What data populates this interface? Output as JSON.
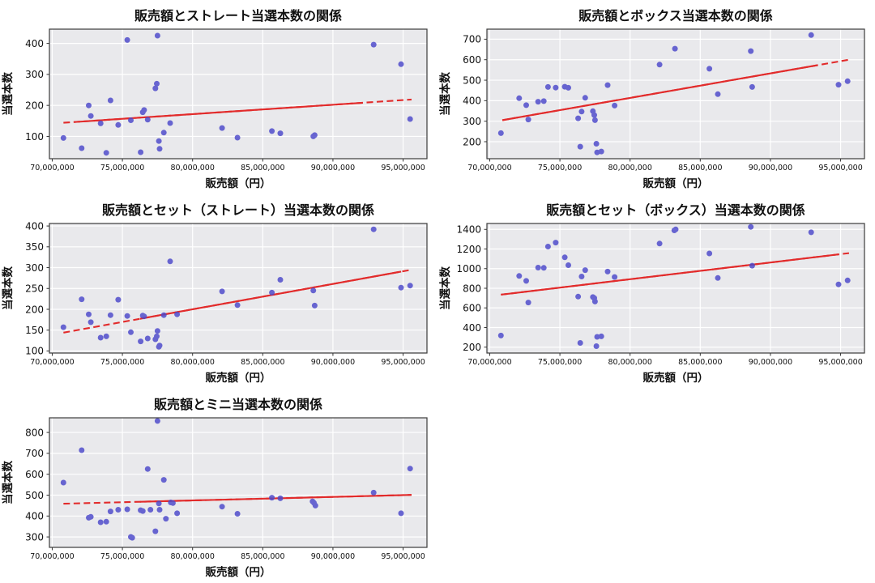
{
  "figure": {
    "background": "#ffffff",
    "rows": 3,
    "cols": 2
  },
  "style": {
    "plot_bg": "#e9e9ec",
    "grid_color": "#ffffff",
    "spine_color": "#3b3b3b",
    "tick_color": "#333333",
    "text_color": "#111111",
    "marker_color": "#4b48cb",
    "marker_opacity": 0.82,
    "trend_color": "#e22b2b"
  },
  "chart_data": [
    {
      "id": "straight",
      "type": "scatter",
      "title": "販売額とストレート当選本数の関係",
      "xlabel": "販売額（円）",
      "ylabel": "当選本数",
      "grid": true,
      "xlim": [
        69800000,
        96700000
      ],
      "ylim": [
        28,
        446
      ],
      "xticks": [
        [
          70000000,
          "70,000,000"
        ],
        [
          75000000,
          "75,000,000"
        ],
        [
          80000000,
          "80,000,000"
        ],
        [
          85000000,
          "85,000,000"
        ],
        [
          90000000,
          "90,000,000"
        ],
        [
          95000000,
          "95,000,000"
        ]
      ],
      "yticks": [
        [
          100,
          "100"
        ],
        [
          200,
          "200"
        ],
        [
          300,
          "300"
        ],
        [
          400,
          "400"
        ]
      ],
      "points": [
        [
          70800000,
          95
        ],
        [
          72100000,
          62
        ],
        [
          72600000,
          200
        ],
        [
          72750000,
          166
        ],
        [
          73450000,
          142
        ],
        [
          73850000,
          47
        ],
        [
          74150000,
          216
        ],
        [
          74700000,
          137
        ],
        [
          75350000,
          411
        ],
        [
          75600000,
          152
        ],
        [
          76300000,
          49
        ],
        [
          76450000,
          178
        ],
        [
          76550000,
          185
        ],
        [
          76800000,
          154
        ],
        [
          77350000,
          255
        ],
        [
          77450000,
          270
        ],
        [
          77500000,
          425
        ],
        [
          77600000,
          85
        ],
        [
          77650000,
          60
        ],
        [
          77950000,
          112
        ],
        [
          78400000,
          143
        ],
        [
          82100000,
          127
        ],
        [
          83200000,
          96
        ],
        [
          85650000,
          117
        ],
        [
          86250000,
          110
        ],
        [
          88600000,
          100
        ],
        [
          88700000,
          104
        ],
        [
          92900000,
          396
        ],
        [
          94850000,
          333
        ],
        [
          95500000,
          156
        ]
      ],
      "trend": {
        "x1": 70800000,
        "y1": 144,
        "x2": 95600000,
        "y2": 219,
        "solid": [
          0.03,
          0.86
        ]
      }
    },
    {
      "id": "box",
      "type": "scatter",
      "title": "販売額とボックス当選本数の関係",
      "xlabel": "販売額（円）",
      "ylabel": "当選本数",
      "grid": true,
      "xlim": [
        69800000,
        96700000
      ],
      "ylim": [
        117,
        749
      ],
      "xticks": [
        [
          70000000,
          "70,000,000"
        ],
        [
          75000000,
          "75,000,000"
        ],
        [
          80000000,
          "80,000,000"
        ],
        [
          85000000,
          "85,000,000"
        ],
        [
          90000000,
          "90,000,000"
        ],
        [
          95000000,
          "95,000,000"
        ]
      ],
      "yticks": [
        [
          200,
          "200"
        ],
        [
          300,
          "300"
        ],
        [
          400,
          "400"
        ],
        [
          500,
          "500"
        ],
        [
          600,
          "600"
        ],
        [
          700,
          "700"
        ]
      ],
      "points": [
        [
          70800000,
          242
        ],
        [
          72100000,
          412
        ],
        [
          72600000,
          378
        ],
        [
          72750000,
          308
        ],
        [
          73450000,
          395
        ],
        [
          73850000,
          398
        ],
        [
          74150000,
          467
        ],
        [
          74700000,
          464
        ],
        [
          75350000,
          468
        ],
        [
          75600000,
          463
        ],
        [
          76300000,
          314
        ],
        [
          76450000,
          176
        ],
        [
          76550000,
          347
        ],
        [
          76800000,
          414
        ],
        [
          77350000,
          349
        ],
        [
          77450000,
          330
        ],
        [
          77500000,
          305
        ],
        [
          77600000,
          190
        ],
        [
          77650000,
          148
        ],
        [
          77950000,
          152
        ],
        [
          78400000,
          476
        ],
        [
          78900000,
          376
        ],
        [
          82100000,
          576
        ],
        [
          83200000,
          654
        ],
        [
          85650000,
          556
        ],
        [
          86250000,
          432
        ],
        [
          88600000,
          642
        ],
        [
          88700000,
          467
        ],
        [
          92900000,
          720
        ],
        [
          94850000,
          478
        ],
        [
          95500000,
          495
        ]
      ],
      "trend": {
        "x1": 70900000,
        "y1": 305,
        "x2": 95600000,
        "y2": 600,
        "solid": [
          0.0,
          0.91
        ]
      }
    },
    {
      "id": "set-straight",
      "type": "scatter",
      "title": "販売額とセット（ストレート）当選本数の関係",
      "xlabel": "販売額（円）",
      "ylabel": "当選本数",
      "grid": true,
      "xlim": [
        69800000,
        96700000
      ],
      "ylim": [
        95,
        406
      ],
      "xticks": [
        [
          70000000,
          "70,000,000"
        ],
        [
          75000000,
          "75,000,000"
        ],
        [
          80000000,
          "80,000,000"
        ],
        [
          85000000,
          "85,000,000"
        ],
        [
          90000000,
          "90,000,000"
        ],
        [
          95000000,
          "95,000,000"
        ]
      ],
      "yticks": [
        [
          100,
          "100"
        ],
        [
          150,
          "150"
        ],
        [
          200,
          "200"
        ],
        [
          250,
          "250"
        ],
        [
          300,
          "300"
        ],
        [
          350,
          "350"
        ],
        [
          400,
          "400"
        ]
      ],
      "points": [
        [
          70800000,
          157
        ],
        [
          72100000,
          224
        ],
        [
          72600000,
          188
        ],
        [
          72750000,
          169
        ],
        [
          73450000,
          132
        ],
        [
          73850000,
          135
        ],
        [
          74150000,
          186
        ],
        [
          74700000,
          223
        ],
        [
          75350000,
          184
        ],
        [
          75600000,
          145
        ],
        [
          76300000,
          123
        ],
        [
          76450000,
          185
        ],
        [
          76550000,
          183
        ],
        [
          76800000,
          130
        ],
        [
          77350000,
          128
        ],
        [
          77450000,
          135
        ],
        [
          77500000,
          148
        ],
        [
          77600000,
          110
        ],
        [
          77650000,
          113
        ],
        [
          77950000,
          186
        ],
        [
          78400000,
          315
        ],
        [
          78900000,
          188
        ],
        [
          82100000,
          243
        ],
        [
          83200000,
          210
        ],
        [
          85650000,
          240
        ],
        [
          86250000,
          271
        ],
        [
          88600000,
          245
        ],
        [
          88700000,
          209
        ],
        [
          92900000,
          392
        ],
        [
          94850000,
          252
        ],
        [
          95500000,
          257
        ]
      ],
      "trend": {
        "x1": 70800000,
        "y1": 144,
        "x2": 95600000,
        "y2": 295,
        "solid": [
          0.22,
          0.97
        ]
      }
    },
    {
      "id": "set-box",
      "type": "scatter",
      "title": "販売額とセット（ボックス）当選本数の関係",
      "xlabel": "販売額（円）",
      "ylabel": "当選本数",
      "grid": true,
      "xlim": [
        69800000,
        96700000
      ],
      "ylim": [
        140,
        1460
      ],
      "xticks": [
        [
          70000000,
          "70,000,000"
        ],
        [
          75000000,
          "75,000,000"
        ],
        [
          80000000,
          "80,000,000"
        ],
        [
          85000000,
          "85,000,000"
        ],
        [
          90000000,
          "90,000,000"
        ],
        [
          95000000,
          "95,000,000"
        ]
      ],
      "yticks": [
        [
          200,
          "200"
        ],
        [
          400,
          "400"
        ],
        [
          600,
          "600"
        ],
        [
          800,
          "800"
        ],
        [
          1000,
          "1000"
        ],
        [
          1200,
          "1200"
        ],
        [
          1400,
          "1400"
        ]
      ],
      "points": [
        [
          70800000,
          318
        ],
        [
          72100000,
          925
        ],
        [
          72600000,
          875
        ],
        [
          72750000,
          655
        ],
        [
          73450000,
          1010
        ],
        [
          73850000,
          1008
        ],
        [
          74150000,
          1225
        ],
        [
          74700000,
          1265
        ],
        [
          75350000,
          1115
        ],
        [
          75600000,
          1035
        ],
        [
          76300000,
          715
        ],
        [
          76450000,
          243
        ],
        [
          76550000,
          920
        ],
        [
          76800000,
          985
        ],
        [
          77350000,
          710
        ],
        [
          77450000,
          700
        ],
        [
          77500000,
          665
        ],
        [
          77600000,
          210
        ],
        [
          77650000,
          305
        ],
        [
          77950000,
          310
        ],
        [
          78400000,
          970
        ],
        [
          78900000,
          915
        ],
        [
          82100000,
          1255
        ],
        [
          83150000,
          1390
        ],
        [
          83250000,
          1400
        ],
        [
          85650000,
          1155
        ],
        [
          86250000,
          905
        ],
        [
          88600000,
          1425
        ],
        [
          88700000,
          1030
        ],
        [
          92900000,
          1370
        ],
        [
          94850000,
          840
        ],
        [
          95500000,
          880
        ]
      ],
      "trend": {
        "x1": 70800000,
        "y1": 735,
        "x2": 95600000,
        "y2": 1158,
        "solid": [
          0.0,
          0.97
        ]
      }
    },
    {
      "id": "mini",
      "type": "scatter",
      "title": "販売額とミニ当選本数の関係",
      "xlabel": "販売額（円）",
      "ylabel": "当選本数",
      "grid": true,
      "xlim": [
        69800000,
        96700000
      ],
      "ylim": [
        250,
        870
      ],
      "xticks": [
        [
          70000000,
          "70,000,000"
        ],
        [
          75000000,
          "75,000,000"
        ],
        [
          80000000,
          "80,000,000"
        ],
        [
          85000000,
          "85,000,000"
        ],
        [
          90000000,
          "90,000,000"
        ],
        [
          95000000,
          "95,000,000"
        ]
      ],
      "yticks": [
        [
          300,
          "300"
        ],
        [
          400,
          "400"
        ],
        [
          500,
          "500"
        ],
        [
          600,
          "600"
        ],
        [
          700,
          "700"
        ],
        [
          800,
          "800"
        ]
      ],
      "points": [
        [
          70800000,
          560
        ],
        [
          72100000,
          715
        ],
        [
          72600000,
          392
        ],
        [
          72750000,
          396
        ],
        [
          73450000,
          370
        ],
        [
          73850000,
          373
        ],
        [
          74150000,
          422
        ],
        [
          74700000,
          430
        ],
        [
          75350000,
          432
        ],
        [
          75600000,
          300
        ],
        [
          75700000,
          296
        ],
        [
          76300000,
          428
        ],
        [
          76450000,
          424
        ],
        [
          76800000,
          625
        ],
        [
          77000000,
          430
        ],
        [
          77350000,
          327
        ],
        [
          77500000,
          855
        ],
        [
          77600000,
          460
        ],
        [
          77650000,
          430
        ],
        [
          77950000,
          573
        ],
        [
          78100000,
          387
        ],
        [
          78450000,
          465
        ],
        [
          78600000,
          462
        ],
        [
          78900000,
          413
        ],
        [
          82100000,
          445
        ],
        [
          83200000,
          411
        ],
        [
          85650000,
          488
        ],
        [
          86250000,
          485
        ],
        [
          88550000,
          470
        ],
        [
          88650000,
          463
        ],
        [
          88750000,
          450
        ],
        [
          92900000,
          512
        ],
        [
          94850000,
          413
        ],
        [
          95500000,
          627
        ]
      ],
      "trend": {
        "x1": 70800000,
        "y1": 459,
        "x2": 95600000,
        "y2": 501,
        "solid": [
          0.22,
          1.0
        ]
      }
    }
  ]
}
